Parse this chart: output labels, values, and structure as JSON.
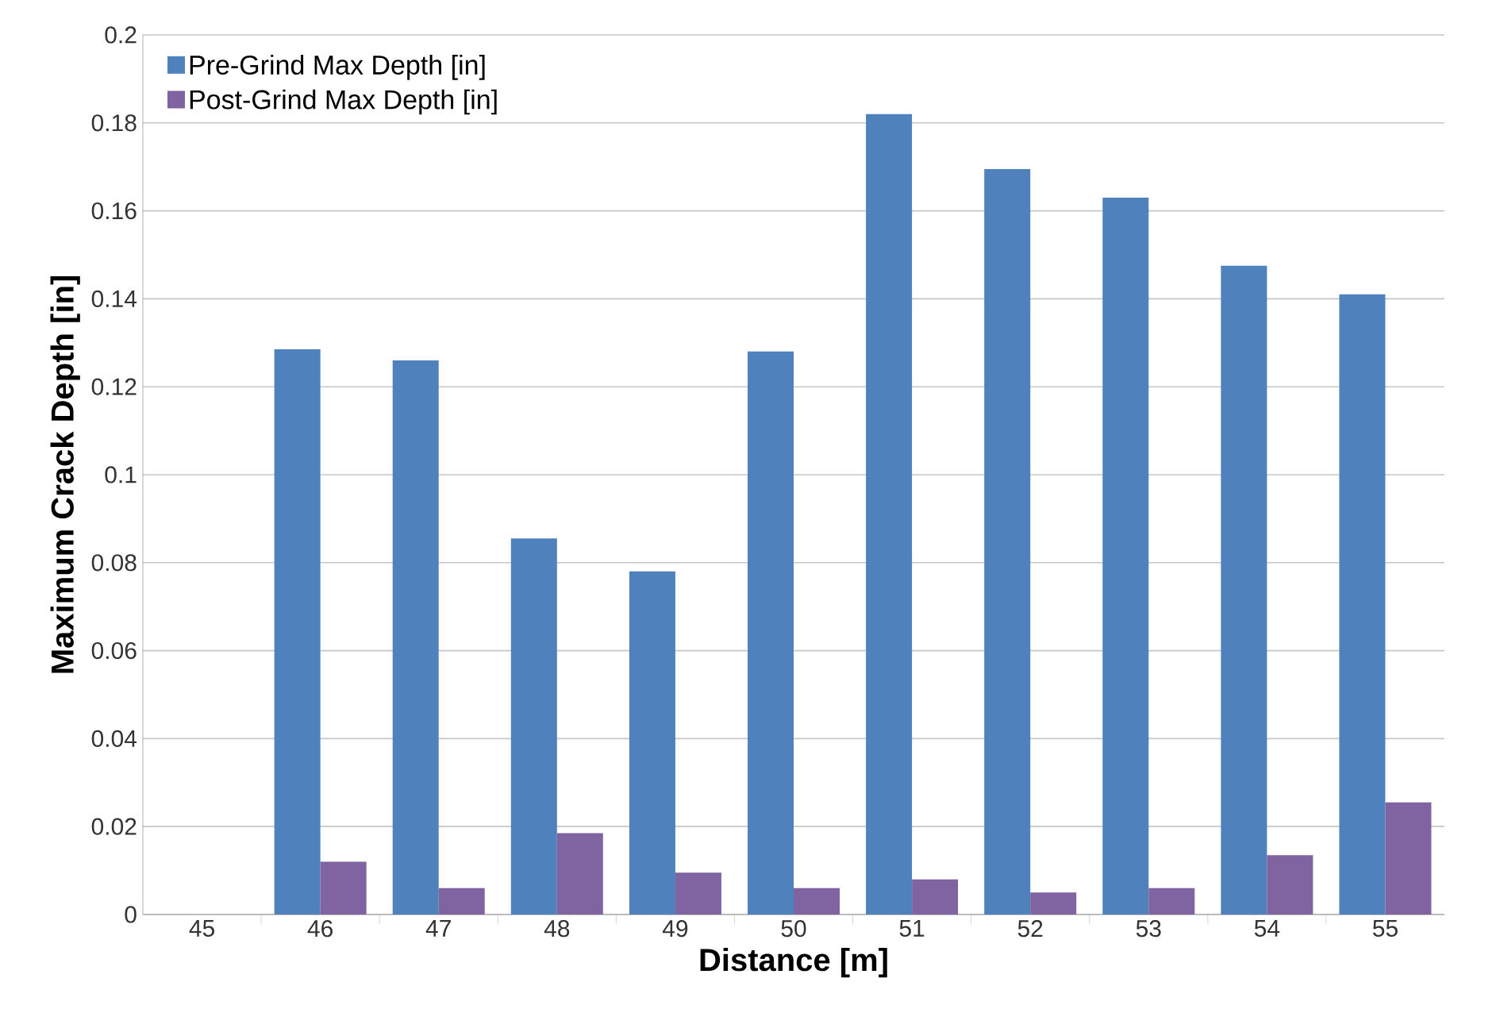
{
  "chart_data": {
    "type": "bar",
    "xlabel": "Distance [m]",
    "ylabel": "Maximum Crack Depth [in]",
    "categories": [
      "45",
      "46",
      "47",
      "48",
      "49",
      "50",
      "51",
      "52",
      "53",
      "54",
      "55"
    ],
    "series": [
      {
        "name": "Pre-Grind Max Depth [in]",
        "color": "#4f81bd",
        "values": [
          null,
          0.1285,
          0.126,
          0.0855,
          0.078,
          0.128,
          0.182,
          0.1695,
          0.163,
          0.1475,
          0.141
        ]
      },
      {
        "name": "Post-Grind Max Depth [in]",
        "color": "#8064a2",
        "values": [
          null,
          0.012,
          0.006,
          0.0185,
          0.0095,
          0.006,
          0.008,
          0.005,
          0.006,
          0.0135,
          0.0255
        ]
      }
    ],
    "ylim": [
      0,
      0.2
    ],
    "yticks": [
      0,
      0.02,
      0.04,
      0.06,
      0.08,
      0.1,
      0.12,
      0.14,
      0.16,
      0.18,
      0.2
    ],
    "grid": "y",
    "legend": "top left"
  }
}
